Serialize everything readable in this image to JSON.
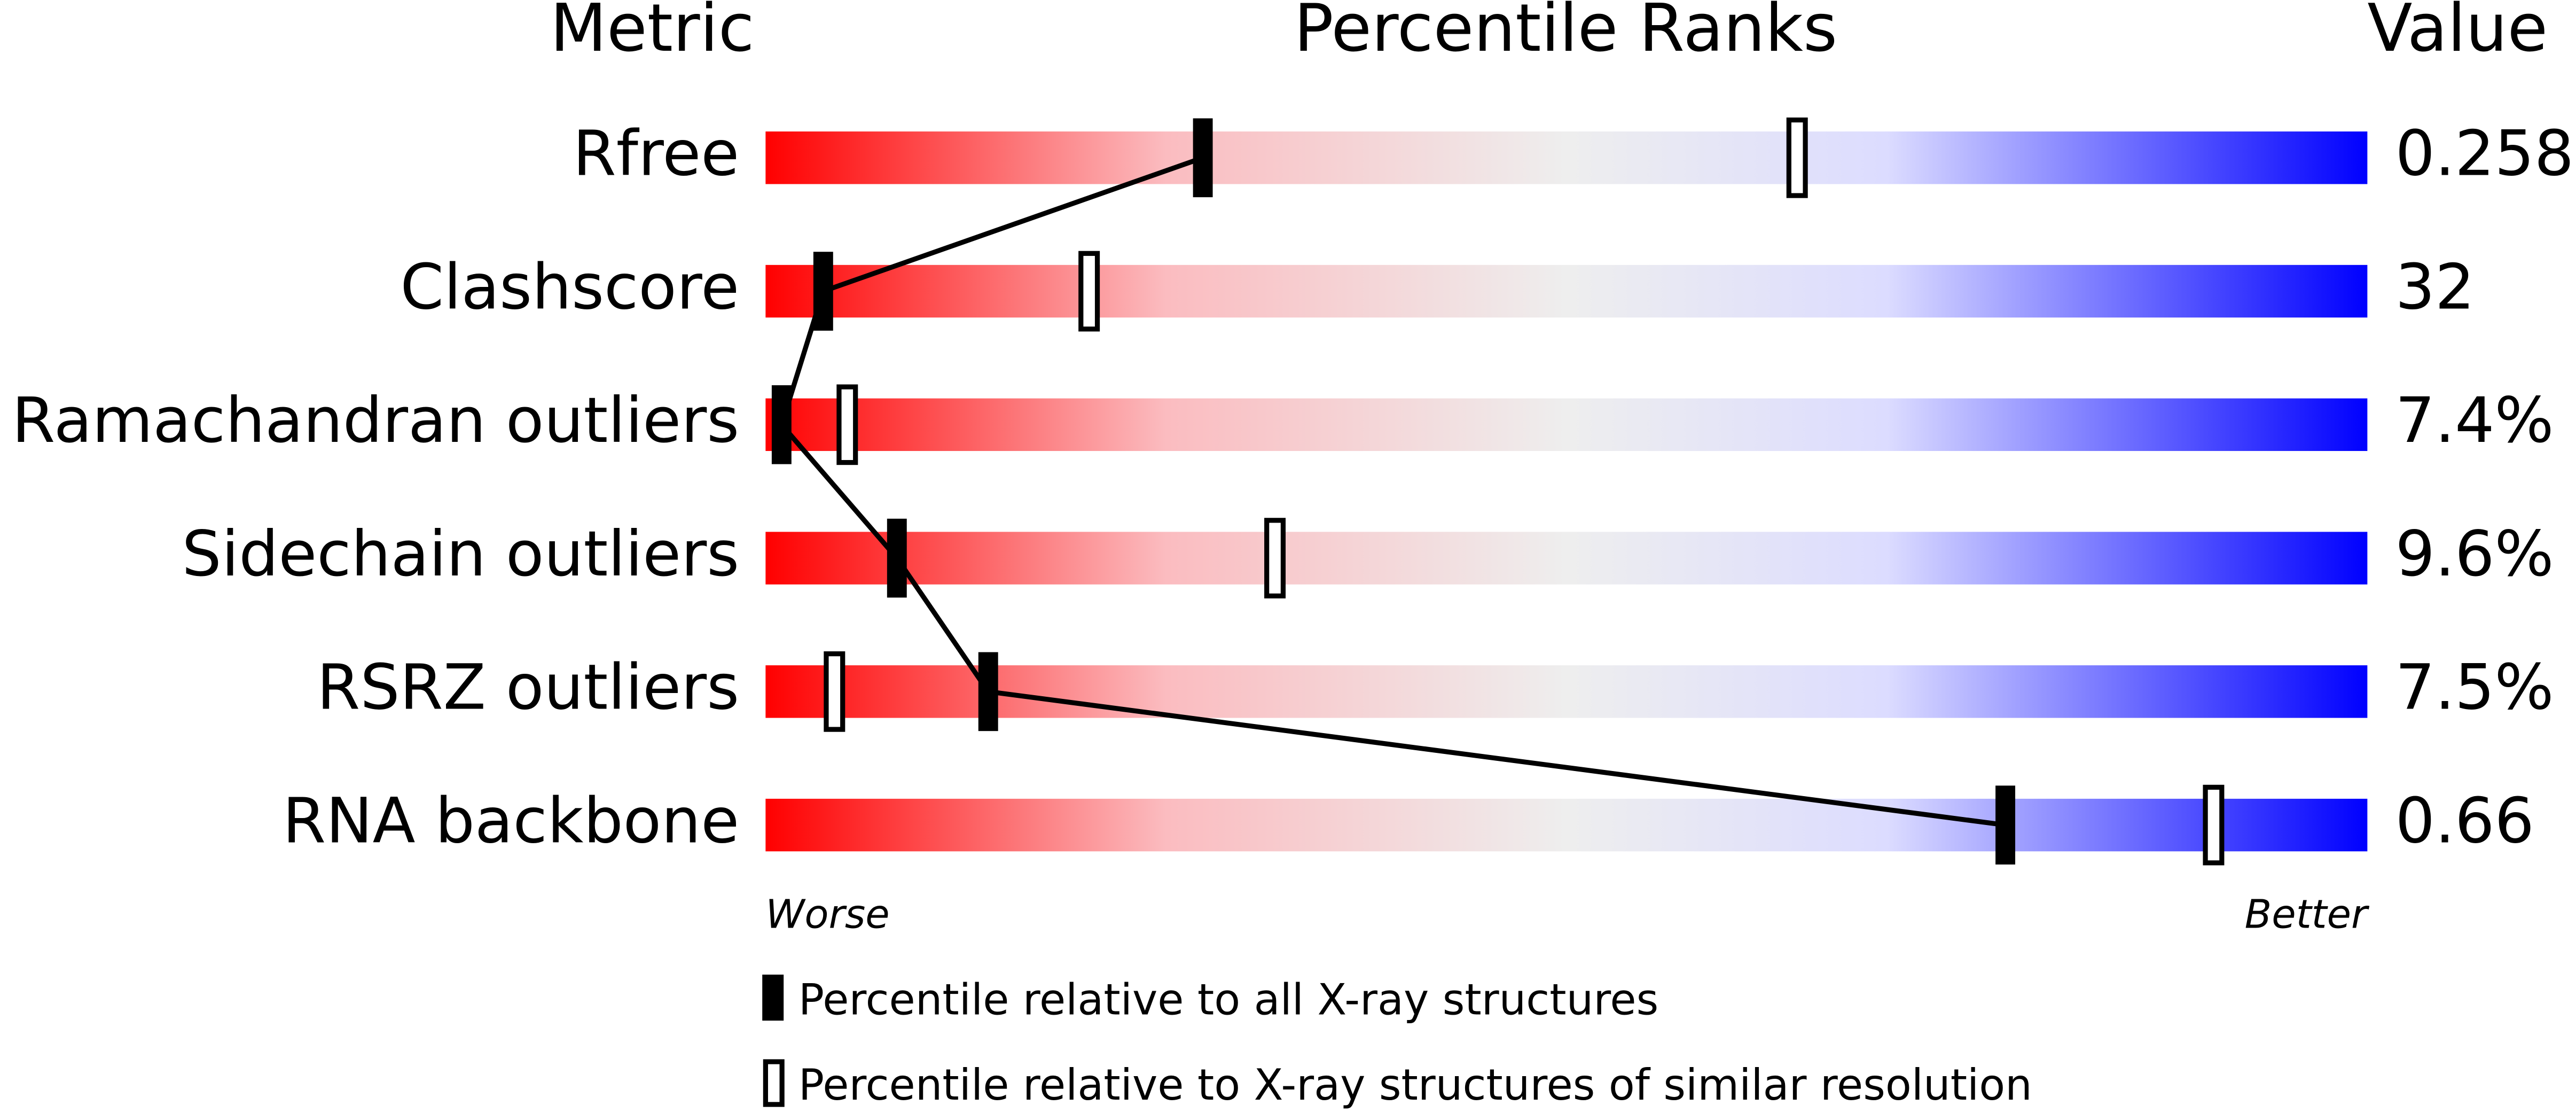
{
  "chart_data": {
    "type": "percentile",
    "column_headers": [
      "Metric",
      "Percentile Ranks",
      "Value"
    ],
    "categories": [
      "Rfree",
      "Clashscore",
      "Ramachandran outliers",
      "Sidechain outliers",
      "RSRZ outliers",
      "RNA backbone"
    ],
    "metric_values": [
      "0.258",
      "32",
      "7.4%",
      "9.6%",
      "7.5%",
      "0.66"
    ],
    "series": [
      {
        "name": "Percentile relative to all X-ray structures",
        "color": "#000000",
        "values": [
          27.3,
          3.6,
          1.0,
          8.2,
          13.9,
          77.4
        ]
      },
      {
        "name": "Percentile relative to X-ray structures of similar resolution",
        "color": "#ffffff",
        "values": [
          64.4,
          20.2,
          5.1,
          31.8,
          4.3,
          90.4
        ]
      }
    ],
    "xlim": [
      0,
      100
    ],
    "axis_end_labels": [
      "Worse",
      "Better"
    ],
    "gradient": [
      "#ff0000",
      "#fbbcc0",
      "#eeeeee",
      "#dcdcff",
      "#0000ff"
    ]
  }
}
